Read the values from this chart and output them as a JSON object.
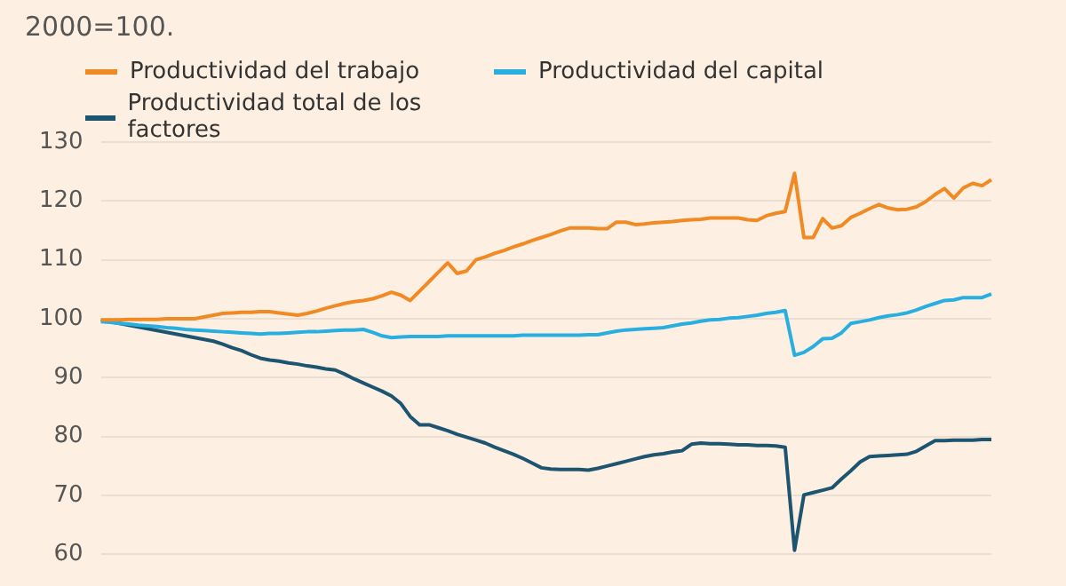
{
  "chart_data": {
    "type": "line",
    "title": "2000=100.",
    "categories": [
      null,
      null,
      null,
      null,
      null,
      null,
      null,
      null,
      null,
      null,
      null,
      null,
      null,
      null,
      null,
      null,
      null,
      null,
      null,
      null,
      null,
      null,
      null,
      null,
      null,
      null,
      null,
      null,
      null,
      null,
      null,
      null,
      null,
      null,
      null,
      null,
      null,
      null,
      null,
      null,
      null,
      null,
      null,
      null,
      null,
      null,
      null,
      null,
      null,
      null,
      null,
      null,
      null,
      null,
      null,
      null,
      null,
      null,
      null,
      null,
      null,
      null,
      null,
      null,
      null,
      null,
      null,
      null,
      null,
      null,
      null,
      null,
      null,
      null,
      null,
      null,
      null,
      null,
      null,
      null,
      null,
      null,
      null,
      null,
      null,
      null,
      null,
      null,
      null,
      null,
      null,
      null,
      null,
      null,
      null,
      null
    ],
    "series": [
      {
        "name": "Productividad del trabajo",
        "color": "#f08a24",
        "values": [
          99.8,
          99.8,
          99.8,
          99.9,
          99.9,
          99.9,
          99.9,
          100,
          100,
          100,
          100,
          100.3,
          100.6,
          100.9,
          101,
          101.1,
          101.1,
          101.2,
          101.2,
          101,
          100.8,
          100.6,
          100.9,
          101.3,
          101.8,
          102.2,
          102.6,
          102.9,
          103.1,
          103.4,
          103.9,
          104.5,
          104,
          103.1,
          104.7,
          106.3,
          107.9,
          109.5,
          107.7,
          108.1,
          110,
          110.5,
          111.1,
          111.6,
          112.2,
          112.7,
          113.3,
          113.8,
          114.3,
          114.9,
          115.4,
          115.4,
          115.4,
          115.3,
          115.3,
          116.4,
          116.4,
          116,
          116.1,
          116.3,
          116.4,
          116.5,
          116.7,
          116.8,
          116.9,
          117.1,
          117.1,
          117.1,
          117.1,
          116.8,
          116.7,
          117.5,
          117.9,
          118.2,
          124.7,
          113.8,
          113.8,
          117,
          115.4,
          115.8,
          117.2,
          117.9,
          118.7,
          119.4,
          118.8,
          118.5,
          118.6,
          119,
          119.9,
          121.1,
          122.1,
          120.5,
          122.2,
          123,
          122.6,
          123.6
        ]
      },
      {
        "name": "Productividad del capital",
        "color": "#29aee0",
        "values": [
          99.5,
          99.4,
          99.2,
          99.1,
          98.9,
          98.8,
          98.7,
          98.5,
          98.4,
          98.2,
          98.1,
          98,
          97.9,
          97.8,
          97.7,
          97.6,
          97.5,
          97.4,
          97.5,
          97.5,
          97.6,
          97.7,
          97.8,
          97.8,
          97.9,
          98,
          98.1,
          98.1,
          98.2,
          97.7,
          97.1,
          96.8,
          96.9,
          97,
          97,
          97,
          97,
          97.1,
          97.1,
          97.1,
          97.1,
          97.1,
          97.1,
          97.1,
          97.1,
          97.2,
          97.2,
          97.2,
          97.2,
          97.2,
          97.2,
          97.2,
          97.3,
          97.3,
          97.6,
          97.9,
          98.1,
          98.2,
          98.3,
          98.4,
          98.5,
          98.8,
          99.1,
          99.3,
          99.6,
          99.8,
          99.9,
          100.1,
          100.2,
          100.4,
          100.6,
          100.9,
          101.1,
          101.4,
          93.8,
          94.3,
          95.3,
          96.6,
          96.7,
          97.6,
          99.2,
          99.5,
          99.8,
          100.2,
          100.5,
          100.7,
          101,
          101.5,
          102.1,
          102.6,
          103.1,
          103.2,
          103.6,
          103.6,
          103.6,
          104.2
        ]
      },
      {
        "name": "Productividad total de los factores",
        "color": "#1d5470",
        "values": [
          99.8,
          99.5,
          99.2,
          98.9,
          98.6,
          98.3,
          98,
          97.7,
          97.4,
          97.1,
          96.8,
          96.5,
          96.2,
          95.7,
          95.1,
          94.6,
          93.9,
          93.3,
          93,
          92.8,
          92.5,
          92.3,
          92,
          91.8,
          91.5,
          91.3,
          90.6,
          89.8,
          89.1,
          88.4,
          87.7,
          86.9,
          85.6,
          83.4,
          82,
          82,
          81.5,
          81,
          80.4,
          79.9,
          79.4,
          78.9,
          78.2,
          77.6,
          77,
          76.3,
          75.5,
          74.7,
          74.5,
          74.4,
          74.4,
          74.4,
          74.3,
          74.6,
          75,
          75.4,
          75.8,
          76.2,
          76.6,
          76.9,
          77.1,
          77.4,
          77.6,
          78.7,
          78.9,
          78.8,
          78.8,
          78.7,
          78.6,
          78.6,
          78.5,
          78.5,
          78.4,
          78.2,
          60.7,
          70.1,
          70.5,
          70.9,
          71.3,
          72.8,
          74.2,
          75.7,
          76.6,
          76.7,
          76.8,
          76.9,
          77,
          77.5,
          78.4,
          79.3,
          79.3,
          79.4,
          79.4,
          79.4,
          79.5,
          79.5
        ]
      }
    ],
    "ylim": [
      60,
      130
    ],
    "yticks": [
      60,
      70,
      80,
      90,
      100,
      110,
      120,
      130
    ],
    "grid": "y",
    "legend": "top",
    "tick_labels": "y",
    "marker": "none",
    "line_style": "solid"
  }
}
